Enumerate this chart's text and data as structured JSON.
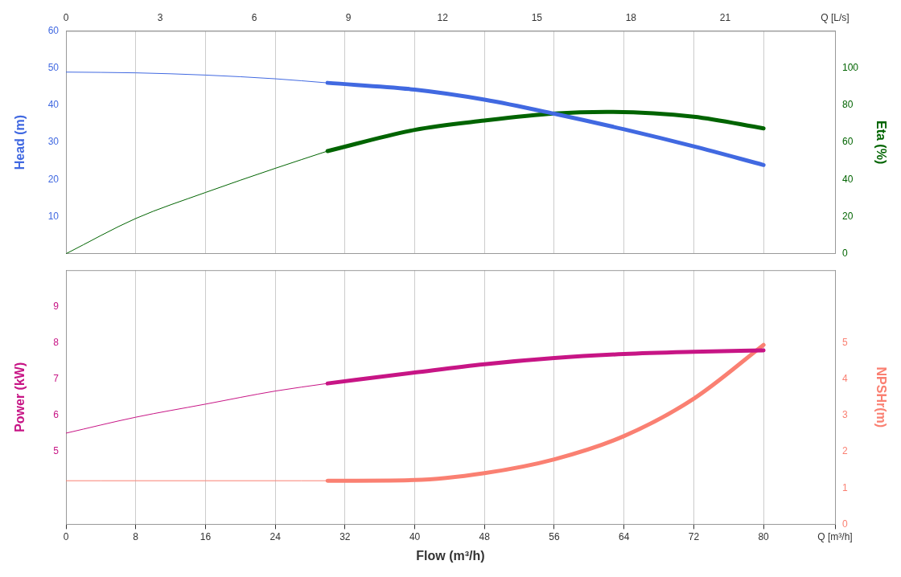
{
  "chart_data": [
    {
      "type": "line",
      "ylabel": "Head (m)",
      "y2label": "Eta (%)",
      "xlim": [
        0,
        88.2
      ],
      "xticks": [
        0,
        8,
        16,
        24,
        32,
        40,
        48,
        56,
        64,
        72,
        80,
        88.2
      ],
      "x2lim": [
        0,
        24.5
      ],
      "x2ticks": [
        0,
        3,
        6,
        9,
        12,
        15,
        18,
        21,
        {
          "value": 24.5,
          "label": "Q [L/s]"
        }
      ],
      "ylim": [
        0,
        60
      ],
      "yticks": [
        10,
        20,
        30,
        40,
        50,
        60
      ],
      "y2lim": [
        0,
        120
      ],
      "y2ticks": [
        0,
        20,
        40,
        60,
        80,
        100
      ],
      "tick_labels": "y",
      "grid": "x",
      "marker": "none",
      "legend": false,
      "series": [
        {
          "color": "#4169e1",
          "x": [
            0,
            8,
            16,
            24,
            30
          ],
          "values": [
            48.9,
            48.7,
            48.1,
            47.1,
            46
          ]
        },
        {
          "color": "#4169e1",
          "x": [
            30,
            40,
            48,
            56,
            64,
            72,
            80
          ],
          "values": [
            46,
            44.2,
            41.5,
            37.7,
            33.5,
            28.9,
            23.9
          ]
        },
        {
          "color": "#006400",
          "axis": "y2",
          "x": [
            0,
            8,
            16,
            24,
            30
          ],
          "values": [
            0,
            19,
            33,
            46,
            55.3
          ]
        },
        {
          "color": "#006400",
          "axis": "y2",
          "x": [
            30,
            40,
            48,
            56,
            62,
            72,
            80
          ],
          "values": [
            55.3,
            66.7,
            71.7,
            75.5,
            76.4,
            73.8,
            67.5
          ]
        }
      ]
    },
    {
      "type": "line",
      "xlabel": "Flow (m³/h)",
      "ylabel": "Power (kW)",
      "y2label": "NPSHr(m)",
      "xlim": [
        0,
        88.2
      ],
      "xticks": [
        0,
        8,
        16,
        24,
        32,
        40,
        48,
        56,
        64,
        72,
        80,
        {
          "value": 88.2,
          "label": "Q [m³/h]"
        }
      ],
      "ylim": [
        3,
        10
      ],
      "yticks": [
        5,
        6,
        7,
        8,
        9
      ],
      "y2lim": [
        0,
        7
      ],
      "y2ticks": [
        0,
        1,
        2,
        3,
        4,
        5
      ],
      "grid": "x",
      "marker": "none",
      "legend": false,
      "series": [
        {
          "color": "#c71585",
          "x": [
            0,
            8,
            16,
            24,
            30
          ],
          "values": [
            5.51,
            5.95,
            6.31,
            6.67,
            6.88
          ]
        },
        {
          "color": "#c71585",
          "x": [
            30,
            40,
            48,
            56,
            64,
            72,
            80
          ],
          "values": [
            6.88,
            7.18,
            7.41,
            7.58,
            7.69,
            7.75,
            7.79
          ]
        },
        {
          "color": "#fa8072",
          "axis": "y2",
          "x": [
            0,
            8,
            16,
            24,
            30
          ],
          "values": [
            1.2,
            1.2,
            1.2,
            1.2,
            1.2
          ]
        },
        {
          "color": "#fa8072",
          "axis": "y2",
          "x": [
            30,
            40,
            48,
            56,
            64,
            72,
            80
          ],
          "values": [
            1.2,
            1.22,
            1.41,
            1.79,
            2.43,
            3.46,
            4.94
          ]
        }
      ]
    }
  ]
}
